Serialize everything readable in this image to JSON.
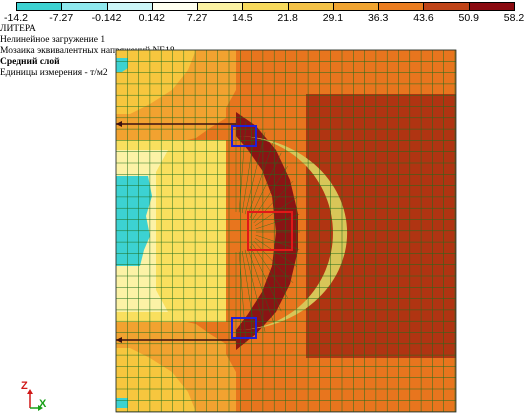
{
  "legend": {
    "ticks": [
      "-14.2",
      "-7.27",
      "-0.142",
      "0.142",
      "7.27",
      "14.5",
      "21.8",
      "29.1",
      "36.3",
      "43.6",
      "50.9",
      "58.2"
    ],
    "colors": [
      "#3cd2d2",
      "#8ee8ee",
      "#ccf6f8",
      "#fffff0",
      "#fbf2a2",
      "#f7da5c",
      "#f4c246",
      "#f0a430",
      "#eb7d20",
      "#c04418",
      "#8a0a10"
    ]
  },
  "info": {
    "app": "ЛИТЕРА",
    "load_case": "Нелинейное загружение 1",
    "mosaic": "Мозаика эквивалентных напряжений NE18",
    "layer": "Средний слой",
    "units": "Единицы измерения - т/м2"
  },
  "axes": {
    "z_label": "Z",
    "x_label": "X"
  },
  "colors": {
    "dark_red": "#8a1414",
    "red_brown": "#b03412",
    "orange": "#e8751e",
    "light_orange": "#f2a230",
    "yellow_orange": "#f7c63e",
    "yellow": "#f9df5e",
    "pale_yellow": "#fcf2a6",
    "cyan": "#3cd2d2",
    "mesh": "#1e6e1e",
    "marker_blue": "#2020d8",
    "marker_red": "#e01818"
  }
}
